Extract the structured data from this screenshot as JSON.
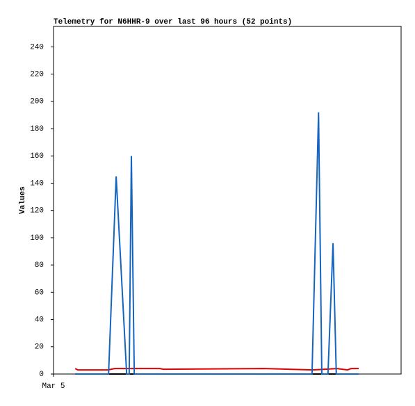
{
  "chart_data": {
    "type": "line",
    "title": "Telemetry for N6HHR-9 over last 96 hours (52 points)",
    "y_label": "Values",
    "xlim": [
      0,
      96
    ],
    "xticks": [
      {
        "value": 0,
        "label": "Mar 5"
      }
    ],
    "ylim": [
      0,
      255
    ],
    "yticks": [
      0,
      20,
      40,
      60,
      80,
      100,
      120,
      140,
      160,
      180,
      200,
      220,
      240
    ],
    "series": [
      {
        "color": "#000000",
        "x": [
          6.0,
          84.3
        ],
        "values": [
          0,
          0
        ]
      },
      {
        "color": "#e00000",
        "x": [
          6.0,
          6.7,
          15.0,
          16.9,
          29.4,
          30.3,
          58.2,
          71.6,
          78.3,
          81.2,
          82.2,
          84.3
        ],
        "values": [
          4,
          3,
          3,
          4,
          4,
          3.5,
          4,
          3,
          4,
          3,
          4,
          4
        ]
      },
      {
        "color": "#1565c0",
        "x": [
          6.0,
          15.2,
          17.3,
          18.2,
          20.2,
          20.9,
          21.5,
          22.3,
          71.4,
          73.2,
          74.1,
          75.8,
          77.2,
          78.1,
          84.3
        ],
        "values": [
          0,
          0,
          145,
          100,
          0,
          0,
          160,
          0,
          0,
          192,
          0,
          0,
          96,
          0,
          0
        ]
      }
    ]
  }
}
